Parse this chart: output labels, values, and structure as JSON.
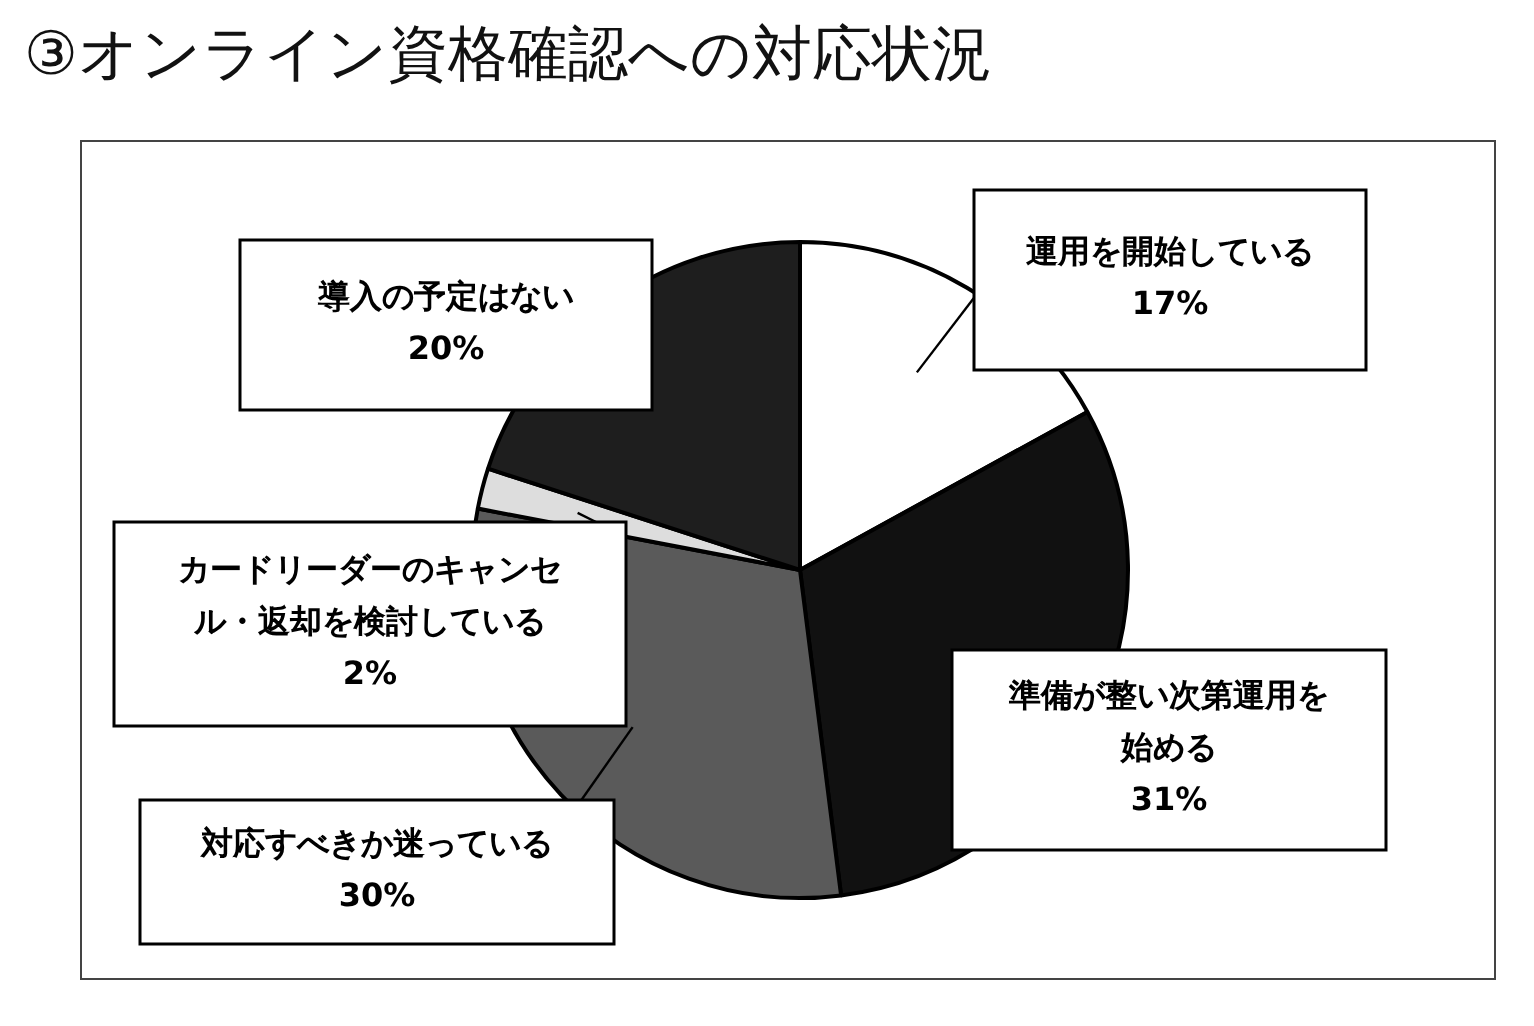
{
  "chart_data": {
    "type": "pie",
    "title": "③オンライン資格確認への対応状況",
    "categories": [
      "運用を開始している",
      "準備が整い次第運用を始める",
      "対応すべきか迷っている",
      "カードリーダーのキャンセル・返却を検討している",
      "導入の予定はない"
    ],
    "values": [
      17,
      31,
      30,
      2,
      20
    ],
    "value_labels": [
      "17%",
      "31%",
      "30%",
      "2%",
      "20%"
    ],
    "colors": [
      "#ffffff",
      "#111111",
      "#5a5a5a",
      "#dddddd",
      "#1e1e1e"
    ]
  }
}
